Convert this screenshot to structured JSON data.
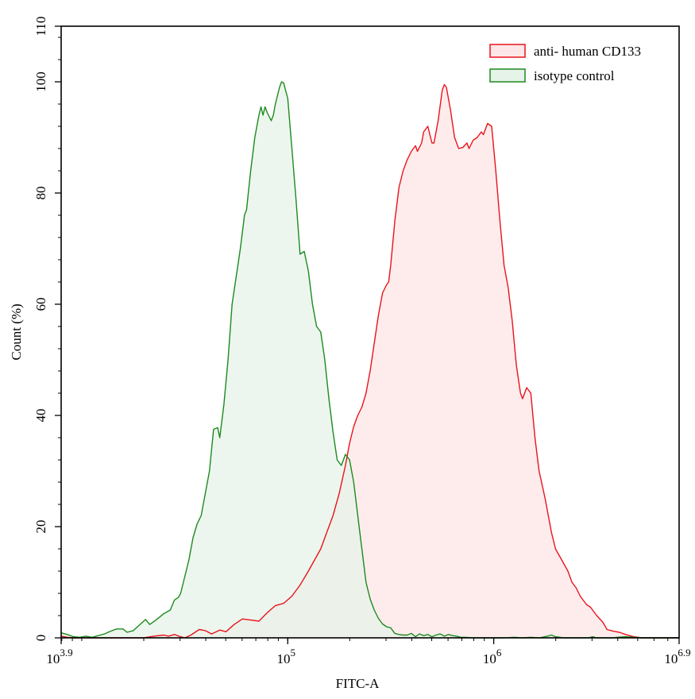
{
  "chart_data": {
    "type": "area",
    "title": "",
    "xlabel": "FITC-A",
    "ylabel": "Count  (%)",
    "xscale": "log10",
    "xlim_log10": [
      3.9,
      6.9
    ],
    "ylim": [
      0,
      110
    ],
    "x_ticks": [
      {
        "log": 3.9,
        "base": "10",
        "exp": "3.9"
      },
      {
        "log": 5,
        "base": "10",
        "exp": "5"
      },
      {
        "log": 6,
        "base": "10",
        "exp": "6"
      },
      {
        "log": 6.9,
        "base": "10",
        "exp": "6.9"
      }
    ],
    "y_ticks": [
      0,
      20,
      40,
      60,
      80,
      100,
      110
    ],
    "grid": false,
    "legend_position": "upper right",
    "series": [
      {
        "name": "anti- human CD133",
        "stroke": "#e8141b",
        "fill": "#fde6e7",
        "points": [
          [
            3.9,
            0.3
          ],
          [
            3.93,
            0.1
          ],
          [
            3.96,
            0
          ],
          [
            4.1,
            0
          ],
          [
            4.3,
            0
          ],
          [
            4.35,
            0.3
          ],
          [
            4.4,
            0.5
          ],
          [
            4.42,
            0.3
          ],
          [
            4.45,
            0.6
          ],
          [
            4.48,
            0.2
          ],
          [
            4.5,
            0
          ],
          [
            4.53,
            0.5
          ],
          [
            4.57,
            1.5
          ],
          [
            4.6,
            1.3
          ],
          [
            4.63,
            0.7
          ],
          [
            4.67,
            1.4
          ],
          [
            4.7,
            1.1
          ],
          [
            4.74,
            2.4
          ],
          [
            4.78,
            3.4
          ],
          [
            4.82,
            3.2
          ],
          [
            4.86,
            3.0
          ],
          [
            4.9,
            4.5
          ],
          [
            4.94,
            5.8
          ],
          [
            4.98,
            6.2
          ],
          [
            5.02,
            7.5
          ],
          [
            5.06,
            9.5
          ],
          [
            5.1,
            12
          ],
          [
            5.13,
            14
          ],
          [
            5.16,
            16
          ],
          [
            5.19,
            19
          ],
          [
            5.22,
            22
          ],
          [
            5.25,
            26
          ],
          [
            5.28,
            31
          ],
          [
            5.3,
            35
          ],
          [
            5.32,
            38
          ],
          [
            5.34,
            40
          ],
          [
            5.36,
            41.5
          ],
          [
            5.38,
            44
          ],
          [
            5.4,
            48
          ],
          [
            5.42,
            53
          ],
          [
            5.44,
            58
          ],
          [
            5.46,
            62
          ],
          [
            5.48,
            63.5
          ],
          [
            5.49,
            64
          ],
          [
            5.5,
            67
          ],
          [
            5.52,
            75
          ],
          [
            5.54,
            81
          ],
          [
            5.56,
            84
          ],
          [
            5.58,
            86
          ],
          [
            5.6,
            87.5
          ],
          [
            5.62,
            88.5
          ],
          [
            5.63,
            87.5
          ],
          [
            5.65,
            89
          ],
          [
            5.66,
            91
          ],
          [
            5.68,
            92
          ],
          [
            5.7,
            89
          ],
          [
            5.71,
            89
          ],
          [
            5.73,
            93
          ],
          [
            5.75,
            98.5
          ],
          [
            5.76,
            99.5
          ],
          [
            5.77,
            99
          ],
          [
            5.79,
            95
          ],
          [
            5.81,
            90
          ],
          [
            5.83,
            88
          ],
          [
            5.85,
            88.2
          ],
          [
            5.87,
            89
          ],
          [
            5.88,
            88
          ],
          [
            5.9,
            89.5
          ],
          [
            5.92,
            90
          ],
          [
            5.94,
            91
          ],
          [
            5.95,
            90.5
          ],
          [
            5.97,
            92.5
          ],
          [
            5.99,
            92
          ],
          [
            6.01,
            84
          ],
          [
            6.03,
            75
          ],
          [
            6.05,
            67
          ],
          [
            6.07,
            63
          ],
          [
            6.09,
            57
          ],
          [
            6.11,
            49
          ],
          [
            6.13,
            44
          ],
          [
            6.14,
            43
          ],
          [
            6.16,
            45
          ],
          [
            6.18,
            44
          ],
          [
            6.2,
            36
          ],
          [
            6.22,
            30
          ],
          [
            6.25,
            25
          ],
          [
            6.28,
            19
          ],
          [
            6.3,
            16
          ],
          [
            6.33,
            14
          ],
          [
            6.36,
            12
          ],
          [
            6.38,
            10
          ],
          [
            6.4,
            9
          ],
          [
            6.42,
            7.5
          ],
          [
            6.45,
            6
          ],
          [
            6.47,
            5.5
          ],
          [
            6.5,
            4
          ],
          [
            6.53,
            2.8
          ],
          [
            6.55,
            1.5
          ],
          [
            6.58,
            1.2
          ],
          [
            6.61,
            1.0
          ],
          [
            6.64,
            0.6
          ],
          [
            6.68,
            0.2
          ],
          [
            6.72,
            0
          ],
          [
            6.9,
            0
          ]
        ]
      },
      {
        "name": "isotype control",
        "stroke": "#1e8a1e",
        "fill": "#e6f3e8",
        "points": [
          [
            3.9,
            0.9
          ],
          [
            3.93,
            0.6
          ],
          [
            3.96,
            0.2
          ],
          [
            3.99,
            0.1
          ],
          [
            4.02,
            0.3
          ],
          [
            4.05,
            0.1
          ],
          [
            4.08,
            0.4
          ],
          [
            4.11,
            0.7
          ],
          [
            4.14,
            1.2
          ],
          [
            4.17,
            1.6
          ],
          [
            4.2,
            1.6
          ],
          [
            4.22,
            1.0
          ],
          [
            4.25,
            1.3
          ],
          [
            4.28,
            2.3
          ],
          [
            4.31,
            3.3
          ],
          [
            4.33,
            2.4
          ],
          [
            4.36,
            3.2
          ],
          [
            4.38,
            3.8
          ],
          [
            4.4,
            4.4
          ],
          [
            4.43,
            5.0
          ],
          [
            4.45,
            6.8
          ],
          [
            4.47,
            7.3
          ],
          [
            4.48,
            8.0
          ],
          [
            4.5,
            11
          ],
          [
            4.52,
            14
          ],
          [
            4.54,
            18
          ],
          [
            4.56,
            20.5
          ],
          [
            4.58,
            22
          ],
          [
            4.6,
            26
          ],
          [
            4.62,
            30
          ],
          [
            4.64,
            37.5
          ],
          [
            4.66,
            37.8
          ],
          [
            4.67,
            36
          ],
          [
            4.69,
            42
          ],
          [
            4.71,
            50
          ],
          [
            4.73,
            60
          ],
          [
            4.75,
            65
          ],
          [
            4.77,
            70
          ],
          [
            4.79,
            76
          ],
          [
            4.8,
            77
          ],
          [
            4.82,
            84
          ],
          [
            4.84,
            90
          ],
          [
            4.86,
            94
          ],
          [
            4.87,
            95.5
          ],
          [
            4.88,
            94
          ],
          [
            4.89,
            95.5
          ],
          [
            4.9,
            94.5
          ],
          [
            4.92,
            93
          ],
          [
            4.93,
            94
          ],
          [
            4.94,
            96
          ],
          [
            4.96,
            99
          ],
          [
            4.97,
            100
          ],
          [
            4.98,
            99.8
          ],
          [
            5.0,
            97
          ],
          [
            5.02,
            88
          ],
          [
            5.04,
            79
          ],
          [
            5.06,
            69
          ],
          [
            5.08,
            69.5
          ],
          [
            5.1,
            66
          ],
          [
            5.12,
            60
          ],
          [
            5.14,
            56
          ],
          [
            5.16,
            55
          ],
          [
            5.18,
            50
          ],
          [
            5.2,
            43
          ],
          [
            5.22,
            37
          ],
          [
            5.24,
            32
          ],
          [
            5.26,
            31
          ],
          [
            5.28,
            33
          ],
          [
            5.3,
            32
          ],
          [
            5.32,
            28
          ],
          [
            5.34,
            22
          ],
          [
            5.36,
            16
          ],
          [
            5.38,
            10
          ],
          [
            5.4,
            7
          ],
          [
            5.42,
            5
          ],
          [
            5.44,
            3.5
          ],
          [
            5.46,
            2.5
          ],
          [
            5.48,
            2.0
          ],
          [
            5.5,
            1.8
          ],
          [
            5.52,
            0.8
          ],
          [
            5.54,
            0.6
          ],
          [
            5.56,
            0.5
          ],
          [
            5.58,
            0.5
          ],
          [
            5.6,
            0.8
          ],
          [
            5.62,
            0.2
          ],
          [
            5.64,
            0.7
          ],
          [
            5.66,
            0.4
          ],
          [
            5.68,
            0.6
          ],
          [
            5.7,
            0.2
          ],
          [
            5.72,
            0.5
          ],
          [
            5.74,
            0.7
          ],
          [
            5.76,
            0.3
          ],
          [
            5.78,
            0.6
          ],
          [
            5.8,
            0.4
          ],
          [
            5.82,
            0.3
          ],
          [
            5.84,
            0.1
          ],
          [
            5.86,
            0.1
          ],
          [
            5.9,
            0
          ],
          [
            6.0,
            0
          ],
          [
            6.05,
            0
          ],
          [
            6.1,
            0.1
          ],
          [
            6.14,
            0
          ],
          [
            6.18,
            0.1
          ],
          [
            6.22,
            0
          ],
          [
            6.26,
            0.3
          ],
          [
            6.28,
            0.5
          ],
          [
            6.3,
            0.2
          ],
          [
            6.34,
            0
          ],
          [
            6.46,
            0
          ],
          [
            6.48,
            0.2
          ],
          [
            6.5,
            0
          ],
          [
            6.58,
            0
          ],
          [
            6.6,
            0.1
          ],
          [
            6.64,
            0.2
          ],
          [
            6.68,
            0.1
          ],
          [
            6.72,
            0
          ],
          [
            6.9,
            0
          ]
        ]
      }
    ]
  },
  "axes": {
    "x_title": "FITC-A",
    "y_title": "Count  (%)"
  },
  "legend": {
    "items": [
      {
        "label": "anti- human CD133",
        "stroke": "#e8141b",
        "fill": "#fde6e7"
      },
      {
        "label": "isotype control",
        "stroke": "#1e8a1e",
        "fill": "#e6f3e8"
      }
    ]
  }
}
